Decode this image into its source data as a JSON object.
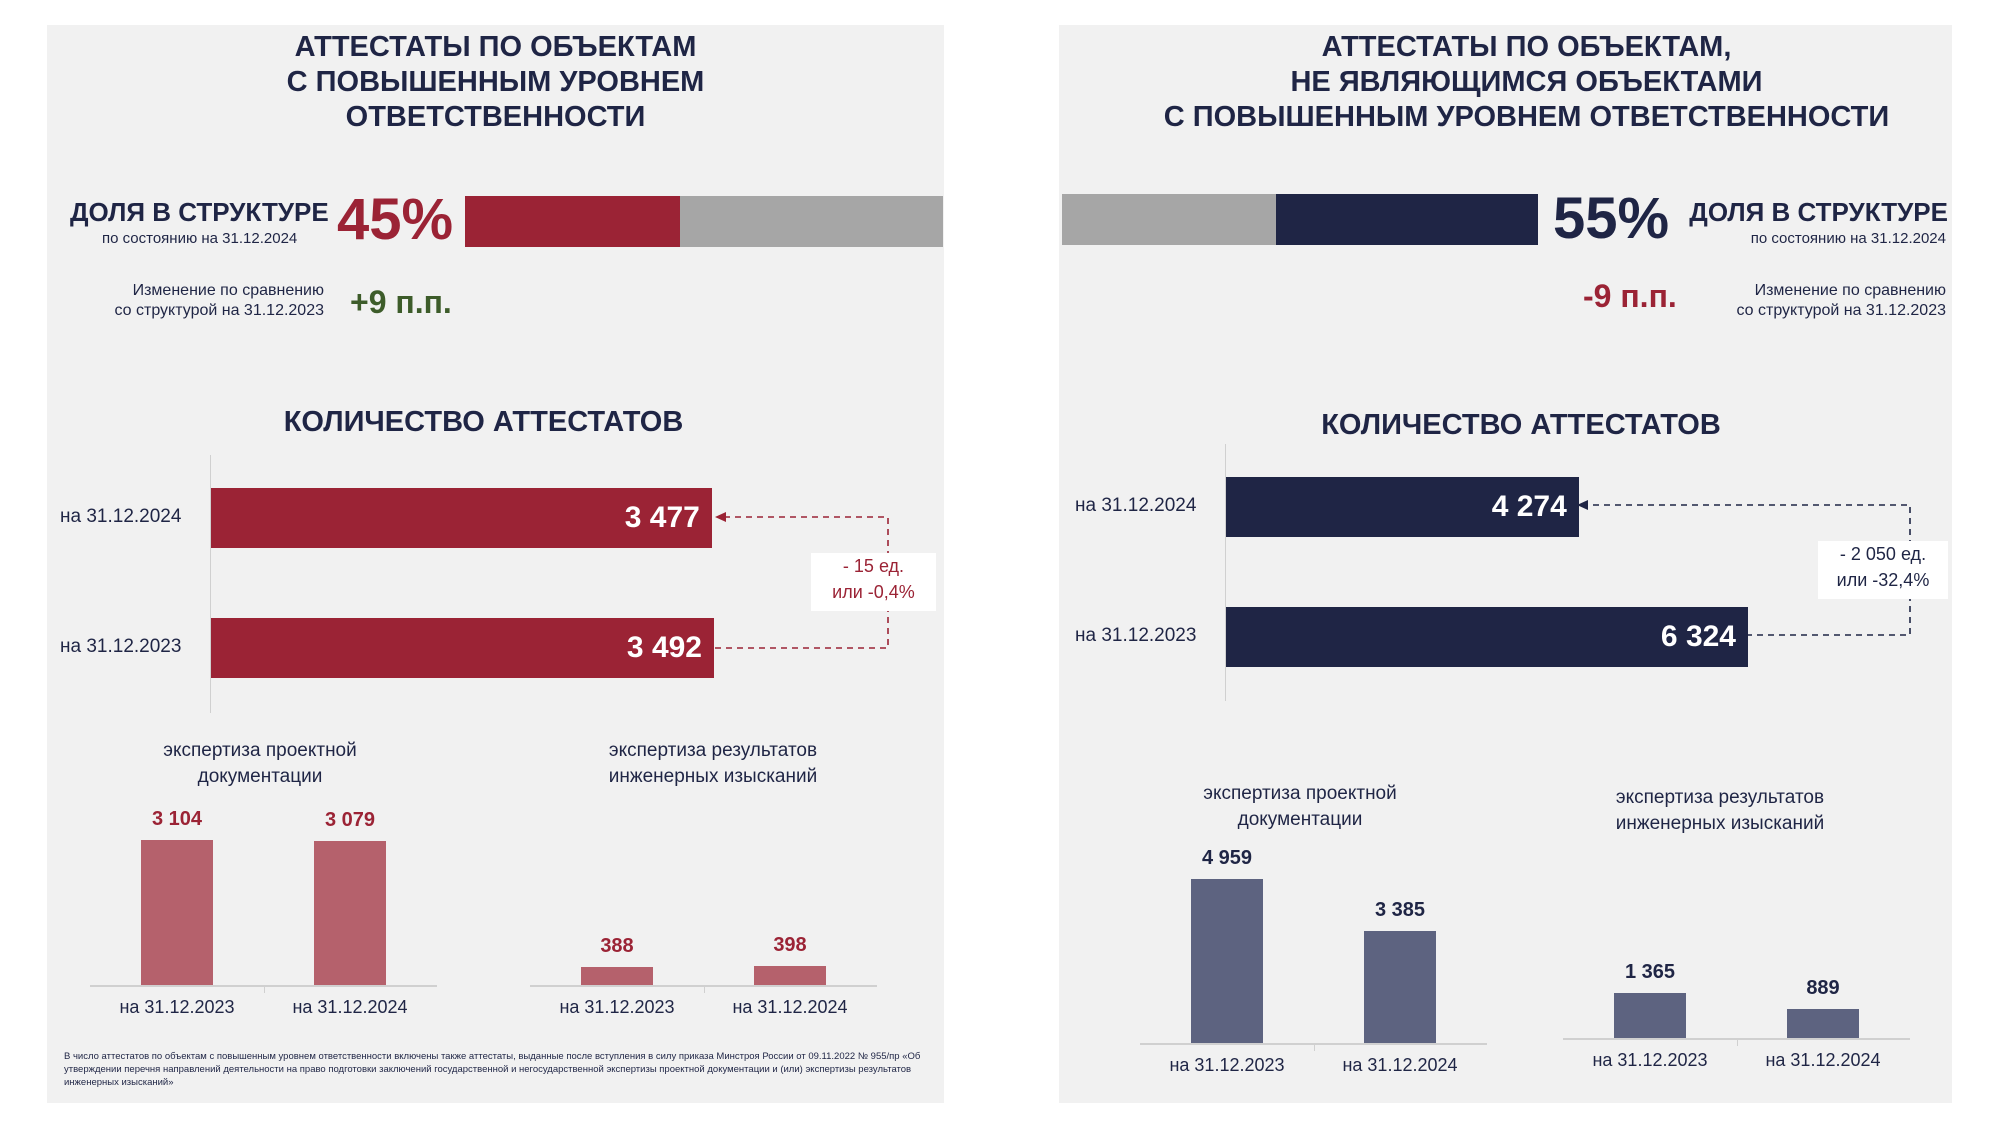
{
  "left": {
    "title": "АТТЕСТАТЫ ПО ОБЪЕКТАМ\nС ПОВЫШЕННЫМ УРОВНЕМ\nОТВЕТСТВЕННОСТИ",
    "share_label": "ДОЛЯ В СТРУКТУРЕ",
    "share_date": "по состоянию на 31.12.2024",
    "share_pct": "45%",
    "share_fraction": 0.45,
    "change_text": "Изменение по сравнению\nсо структурой на 31.12.2023",
    "change_value": "+9 п.п.",
    "count_title": "КОЛИЧЕСТВО АТТЕСТАТОВ",
    "delta_text": "- 15 ед.\nили -0,4%",
    "sub1_title": "экспертиза проектной\nдокументации",
    "sub2_title": "экспертиза результатов\nинженерных изысканий",
    "footnote": "В число аттестатов по объектам с повышенным уровнем ответственности включены также аттестаты, выданные после вступления в силу приказа Минстроя России от 09.11.2022 № 955/пр «Об утверждении перечня направлений деятельности на право подготовки заключений государственной и негосударственной экспертизы проектной документации и (или) экспертизы результатов инженерных изысканий»"
  },
  "right": {
    "title": "АТТЕСТАТЫ ПО ОБЪЕКТАМ,\nНЕ ЯВЛЯЮЩИМСЯ ОБЪЕКТАМИ\nС ПОВЫШЕННЫМ УРОВНЕМ ОТВЕТСТВЕННОСТИ",
    "share_label": "ДОЛЯ В СТРУКТУРЕ",
    "share_date": "по состоянию на 31.12.2024",
    "share_pct": "55%",
    "share_fraction": 0.55,
    "change_text": "Изменение по сравнению\nсо структурой на 31.12.2023",
    "change_value": "-9 п.п.",
    "count_title": "КОЛИЧЕСТВО АТТЕСТАТОВ",
    "delta_text": "- 2 050 ед.\nили -32,4%",
    "sub1_title": "экспертиза проектной\nдокументации",
    "sub2_title": "экспертиза результатов\nинженерных изысканий"
  },
  "colors": {
    "left_accent": "#9b2335",
    "left_bar_light": "#b5616c",
    "right_accent": "#1f2545",
    "right_bar_light": "#5d6380",
    "share_rest": "#a6a6a6",
    "positive_change": "#3d5c2a",
    "negative_change": "#9b2335"
  },
  "chart_data": [
    {
      "type": "bar",
      "orientation": "horizontal",
      "categories": [
        "на 31.12.2024",
        "на 31.12.2023"
      ],
      "values": [
        3477,
        3492
      ],
      "value_labels": [
        "3 477",
        "3 492"
      ]
    },
    {
      "type": "bar",
      "categories": [
        "на 31.12.2023",
        "на 31.12.2024"
      ],
      "values": [
        3104,
        3079
      ],
      "value_labels": [
        "3 104",
        "3 079"
      ]
    },
    {
      "type": "bar",
      "categories": [
        "на 31.12.2023",
        "на 31.12.2024"
      ],
      "values": [
        388,
        398
      ],
      "value_labels": [
        "388",
        "398"
      ]
    },
    {
      "type": "bar",
      "orientation": "horizontal",
      "categories": [
        "на 31.12.2024",
        "на 31.12.2023"
      ],
      "values": [
        4274,
        6324
      ],
      "value_labels": [
        "4 274",
        "6 324"
      ]
    },
    {
      "type": "bar",
      "categories": [
        "на 31.12.2023",
        "на 31.12.2024"
      ],
      "values": [
        4959,
        3385
      ],
      "value_labels": [
        "4 959",
        "3 385"
      ]
    },
    {
      "type": "bar",
      "categories": [
        "на 31.12.2023",
        "на 31.12.2024"
      ],
      "values": [
        1365,
        889
      ],
      "value_labels": [
        "1 365",
        "889"
      ]
    }
  ]
}
